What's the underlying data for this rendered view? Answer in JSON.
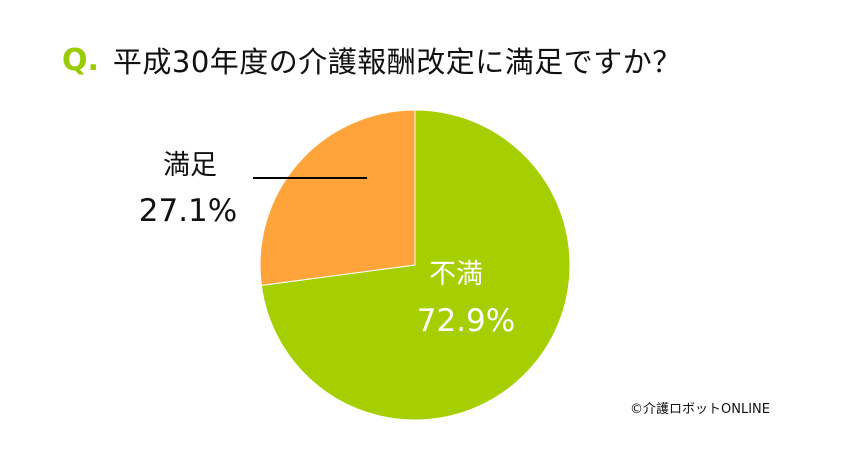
{
  "title": {
    "prefix": "Q.",
    "text": "平成30年度の介護報酬改定に満足ですか？"
  },
  "chart_data": {
    "type": "pie",
    "slices": [
      {
        "label": "不満",
        "value": 72.9,
        "value_label": "72.9%",
        "color": "#a5cf00"
      },
      {
        "label": "満足",
        "value": 27.1,
        "value_label": "27.1%",
        "color": "#ffa43a"
      }
    ],
    "start_angle_deg": 0,
    "direction": "clockwise",
    "legend": "none"
  },
  "credit": "©介護ロボットONLINE"
}
